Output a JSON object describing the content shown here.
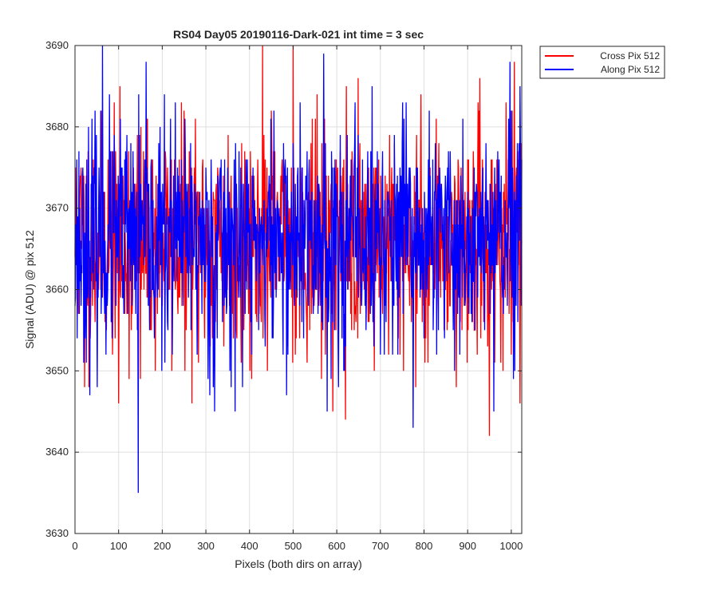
{
  "chart_data": {
    "type": "line",
    "title": "RS04 Day05 20190116-Dark-021 int time = 3 sec",
    "xlabel": "Pixels (both dirs on array)",
    "ylabel": "Signal (ADU) @ pix 512",
    "xlim": [
      0,
      1024
    ],
    "ylim": [
      3630,
      3690
    ],
    "xticks": [
      0,
      100,
      200,
      300,
      400,
      500,
      600,
      700,
      800,
      900,
      1000
    ],
    "yticks": [
      3630,
      3640,
      3650,
      3660,
      3670,
      3680,
      3690
    ],
    "grid": true,
    "legend_position": "outside-top-right",
    "x_step": 1,
    "series": [
      {
        "name": "Cross Pix 512",
        "color": "#ff0000",
        "mean": 3666,
        "noise_sd": 7,
        "seed": 11,
        "extremes": [
          {
            "x": 22,
            "y": 3648
          },
          {
            "x": 100,
            "y": 3646
          },
          {
            "x": 150,
            "y": 3649
          },
          {
            "x": 430,
            "y": 3690
          },
          {
            "x": 500,
            "y": 3690
          },
          {
            "x": 620,
            "y": 3644
          },
          {
            "x": 950,
            "y": 3642
          },
          {
            "x": 1020,
            "y": 3646
          }
        ]
      },
      {
        "name": "Along Pix 512",
        "color": "#0000ff",
        "mean": 3666,
        "noise_sd": 7,
        "seed": 23,
        "extremes": [
          {
            "x": 63,
            "y": 3690
          },
          {
            "x": 145,
            "y": 3635
          },
          {
            "x": 320,
            "y": 3645
          },
          {
            "x": 570,
            "y": 3689
          },
          {
            "x": 775,
            "y": 3643
          },
          {
            "x": 960,
            "y": 3645
          },
          {
            "x": 1020,
            "y": 3685
          }
        ]
      }
    ]
  }
}
